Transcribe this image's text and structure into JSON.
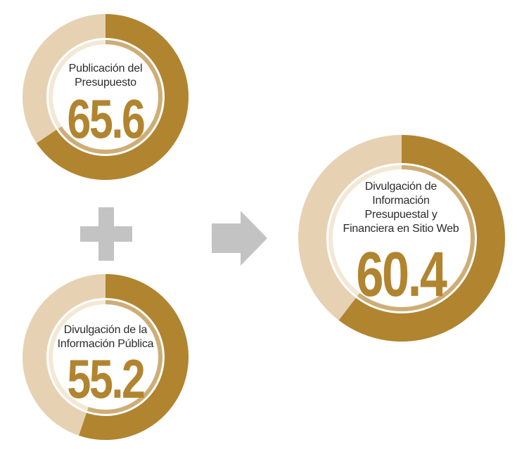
{
  "colors": {
    "filled": "#b1842f",
    "remainder": "#e6d2b3",
    "inner_ring": "#cdae78",
    "inner_ring_light": "#f3e8d6",
    "connector": "#c3c3c4"
  },
  "icons": {
    "plus": "plus-icon",
    "arrow": "arrow-right-icon"
  },
  "chart_data": [
    {
      "type": "pie",
      "label": "Publicación del Presupuesto",
      "value": 65.6,
      "value_text": "65.6",
      "max": 100
    },
    {
      "type": "pie",
      "label": "Divulgación de la Información Pública",
      "value": 55.2,
      "value_text": "55.2",
      "max": 100
    },
    {
      "type": "pie",
      "label": "Divulgación de Información Presupuestal y Financiera en Sitio Web",
      "value": 60.4,
      "value_text": "60.4",
      "max": 100
    }
  ]
}
